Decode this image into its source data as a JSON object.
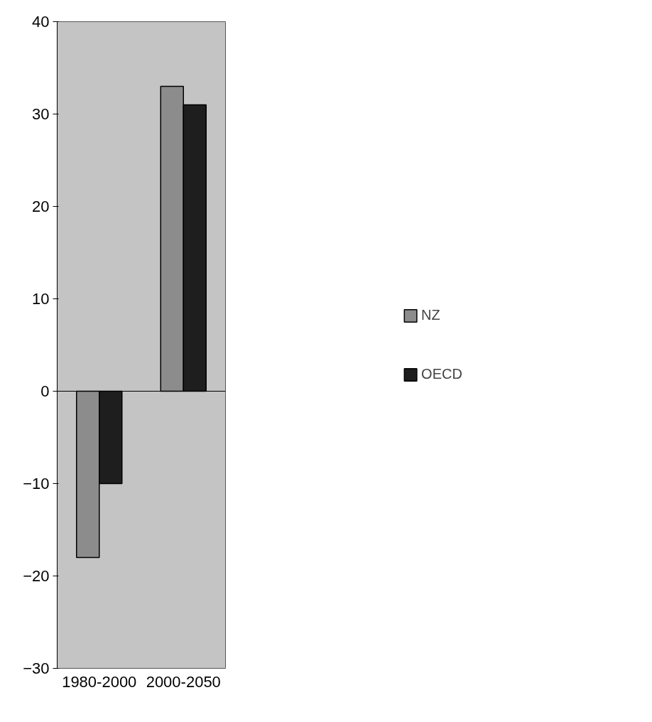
{
  "chart_data": {
    "type": "bar",
    "categories": [
      "1980-2000",
      "2000-2050"
    ],
    "series": [
      {
        "name": "NZ",
        "color": "#8c8c8c",
        "values": [
          -18,
          33
        ]
      },
      {
        "name": "OECD",
        "color": "#1e1e1e",
        "values": [
          -10,
          31
        ]
      }
    ],
    "ylim": [
      -30,
      40
    ],
    "yticks": [
      -30,
      -20,
      -10,
      0,
      10,
      20,
      30,
      40
    ],
    "legend": "right"
  }
}
